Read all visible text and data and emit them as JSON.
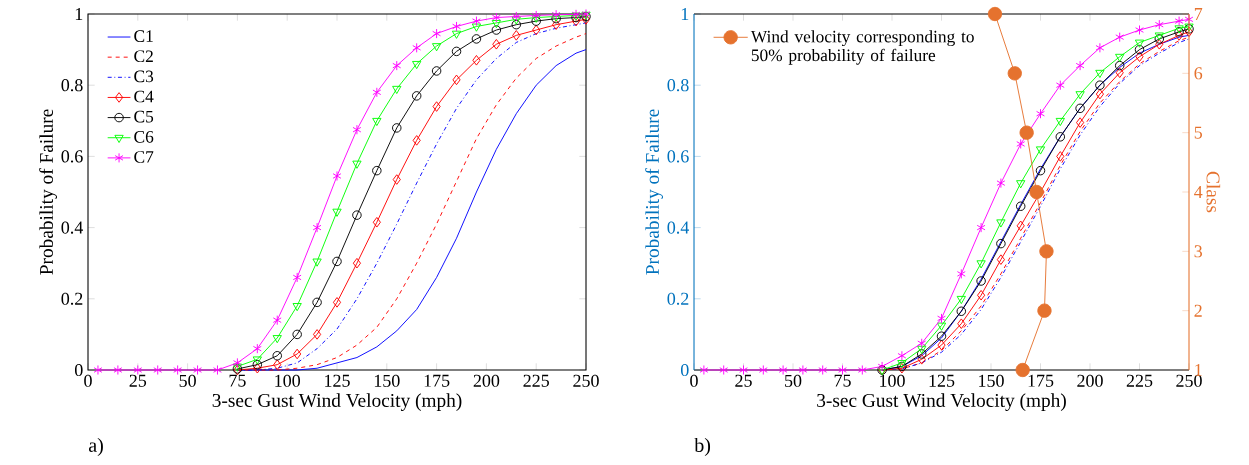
{
  "chart_data": [
    {
      "type": "line",
      "xlabel": "3-sec Gust Wind Velocity (mph)",
      "ylabel": "Probability of Failure",
      "xlim": [
        0,
        250
      ],
      "ylim": [
        0,
        1
      ],
      "xticks": [
        0,
        25,
        50,
        75,
        100,
        125,
        150,
        175,
        200,
        225,
        250
      ],
      "yticks": [
        0,
        0.2,
        0.4,
        0.6,
        0.8,
        1
      ],
      "legend": "top left",
      "annotations": [
        "a)"
      ],
      "x": [
        5,
        15,
        25,
        35,
        45,
        55,
        65,
        75,
        85,
        95,
        105,
        115,
        125,
        135,
        145,
        155,
        165,
        175,
        185,
        195,
        205,
        215,
        225,
        235,
        245,
        250
      ],
      "series": [
        {
          "name": "C1",
          "color": "#0000ff",
          "line_style": "solid",
          "marker": "none",
          "values": [
            null,
            null,
            null,
            null,
            null,
            null,
            null,
            0,
            0,
            0,
            0,
            0.005,
            0.02,
            0.035,
            0.065,
            0.11,
            0.17,
            0.26,
            0.37,
            0.5,
            0.62,
            0.72,
            0.8,
            0.855,
            0.89,
            0.9
          ]
        },
        {
          "name": "C2",
          "color": "#ff0000",
          "line_style": "dashed",
          "marker": "none",
          "values": [
            null,
            null,
            null,
            null,
            null,
            null,
            null,
            0,
            0,
            0,
            0.005,
            0.015,
            0.035,
            0.07,
            0.12,
            0.2,
            0.3,
            0.41,
            0.53,
            0.65,
            0.745,
            0.82,
            0.875,
            0.91,
            0.935,
            0.945
          ]
        },
        {
          "name": "C3",
          "color": "#0000ff",
          "line_style": "dashdot",
          "marker": "none",
          "values": [
            null,
            null,
            null,
            null,
            null,
            null,
            null,
            0,
            0,
            0.005,
            0.02,
            0.06,
            0.115,
            0.2,
            0.3,
            0.41,
            0.525,
            0.635,
            0.735,
            0.815,
            0.875,
            0.92,
            0.945,
            0.96,
            0.97,
            0.975
          ]
        },
        {
          "name": "C4",
          "color": "#ff0000",
          "line_style": "solid",
          "marker": "diamond",
          "values": [
            null,
            null,
            null,
            null,
            null,
            null,
            null,
            0,
            0.005,
            0.015,
            0.045,
            0.1,
            0.19,
            0.3,
            0.415,
            0.535,
            0.645,
            0.74,
            0.815,
            0.87,
            0.915,
            0.94,
            0.955,
            0.97,
            0.98,
            0.985
          ]
        },
        {
          "name": "C5",
          "color": "#000000",
          "line_style": "solid",
          "marker": "circle",
          "values": [
            null,
            null,
            null,
            null,
            null,
            null,
            null,
            0.003,
            0.015,
            0.04,
            0.1,
            0.19,
            0.305,
            0.435,
            0.56,
            0.68,
            0.77,
            0.84,
            0.895,
            0.93,
            0.955,
            0.97,
            0.98,
            0.987,
            0.99,
            0.993
          ]
        },
        {
          "name": "C6",
          "color": "#00ff00",
          "line_style": "solid",
          "marker": "triangle",
          "values": [
            null,
            null,
            null,
            null,
            null,
            null,
            null,
            0.01,
            0.03,
            0.09,
            0.18,
            0.305,
            0.445,
            0.58,
            0.7,
            0.79,
            0.86,
            0.91,
            0.945,
            0.965,
            0.975,
            0.985,
            0.99,
            0.993,
            0.996,
            0.998
          ]
        },
        {
          "name": "C7",
          "color": "#ff00ff",
          "line_style": "solid",
          "marker": "cross",
          "values": [
            0,
            0,
            0,
            0,
            0,
            0,
            0,
            0.02,
            0.06,
            0.14,
            0.26,
            0.4,
            0.545,
            0.675,
            0.78,
            0.855,
            0.905,
            0.945,
            0.965,
            0.98,
            0.99,
            0.993,
            0.996,
            0.998,
            0.999,
            1
          ]
        }
      ]
    },
    {
      "type": "line",
      "xlabel": "3-sec Gust Wind Velocity (mph)",
      "ylabel": "Probability of Failure",
      "y2label": "Class",
      "xlim": [
        0,
        250
      ],
      "ylim": [
        0,
        1
      ],
      "y2lim": [
        1,
        7
      ],
      "xticks": [
        0,
        25,
        50,
        75,
        100,
        125,
        150,
        175,
        200,
        225,
        250
      ],
      "yticks": [
        0,
        0.2,
        0.4,
        0.6,
        0.8,
        1
      ],
      "y2ticks": [
        1,
        2,
        3,
        4,
        5,
        6,
        7
      ],
      "legend": "top left",
      "annotations": [
        "b)"
      ],
      "x": [
        5,
        15,
        25,
        35,
        45,
        55,
        65,
        75,
        85,
        95,
        105,
        115,
        125,
        135,
        145,
        155,
        165,
        175,
        185,
        195,
        205,
        215,
        225,
        235,
        245,
        250
      ],
      "series": [
        {
          "color": "#0000ff",
          "line_style": "solid",
          "marker": "none",
          "values": [
            null,
            null,
            null,
            null,
            null,
            null,
            null,
            null,
            null,
            0,
            0.01,
            0.04,
            0.09,
            0.165,
            0.255,
            0.36,
            0.465,
            0.565,
            0.655,
            0.735,
            0.8,
            0.85,
            0.89,
            0.915,
            0.935,
            0.94
          ]
        },
        {
          "color": "#ff0000",
          "line_style": "dashed",
          "marker": "none",
          "values": [
            null,
            null,
            null,
            null,
            null,
            null,
            null,
            null,
            null,
            0,
            0.003,
            0.02,
            0.055,
            0.11,
            0.18,
            0.27,
            0.37,
            0.47,
            0.575,
            0.67,
            0.75,
            0.81,
            0.86,
            0.895,
            0.925,
            0.935
          ]
        },
        {
          "color": "#0000ff",
          "line_style": "dashdot",
          "marker": "none",
          "values": [
            null,
            null,
            null,
            null,
            null,
            null,
            null,
            null,
            null,
            0,
            0.003,
            0.02,
            0.05,
            0.1,
            0.17,
            0.26,
            0.36,
            0.46,
            0.565,
            0.66,
            0.74,
            0.805,
            0.855,
            0.89,
            0.92,
            0.93
          ]
        },
        {
          "color": "#ff0000",
          "line_style": "solid",
          "marker": "diamond",
          "values": [
            null,
            null,
            null,
            null,
            null,
            null,
            null,
            null,
            null,
            0,
            0.005,
            0.03,
            0.07,
            0.13,
            0.21,
            0.31,
            0.405,
            0.5,
            0.6,
            0.695,
            0.775,
            0.835,
            0.88,
            0.915,
            0.94,
            0.95
          ]
        },
        {
          "color": "#000000",
          "line_style": "solid",
          "marker": "circle",
          "values": [
            null,
            null,
            null,
            null,
            null,
            null,
            null,
            null,
            null,
            0,
            0.01,
            0.045,
            0.095,
            0.165,
            0.25,
            0.355,
            0.46,
            0.56,
            0.655,
            0.735,
            0.8,
            0.855,
            0.9,
            0.93,
            0.95,
            0.958
          ]
        },
        {
          "color": "#00ff00",
          "line_style": "solid",
          "marker": "triangle",
          "values": [
            null,
            null,
            null,
            null,
            null,
            null,
            null,
            null,
            null,
            0,
            0.02,
            0.06,
            0.125,
            0.2,
            0.3,
            0.415,
            0.525,
            0.62,
            0.7,
            0.775,
            0.835,
            0.88,
            0.92,
            0.94,
            0.96,
            0.965
          ]
        },
        {
          "color": "#ff00ff",
          "line_style": "solid",
          "marker": "cross",
          "values": [
            0,
            0,
            0,
            0,
            0,
            0,
            0,
            0,
            0,
            0.01,
            0.04,
            0.075,
            0.145,
            0.27,
            0.4,
            0.525,
            0.635,
            0.72,
            0.8,
            0.855,
            0.905,
            0.935,
            0.955,
            0.97,
            0.98,
            0.985
          ]
        },
        {
          "name": "Wind velocity corresponding to 50% probability of failure",
          "axis": "y2",
          "color": "#e5722e",
          "line_style": "solid",
          "marker": "filled circle",
          "x": [
            166,
            177,
            178,
            173,
            168,
            162,
            152
          ],
          "values": [
            1,
            2,
            3,
            4,
            5,
            6,
            7
          ]
        }
      ]
    }
  ]
}
